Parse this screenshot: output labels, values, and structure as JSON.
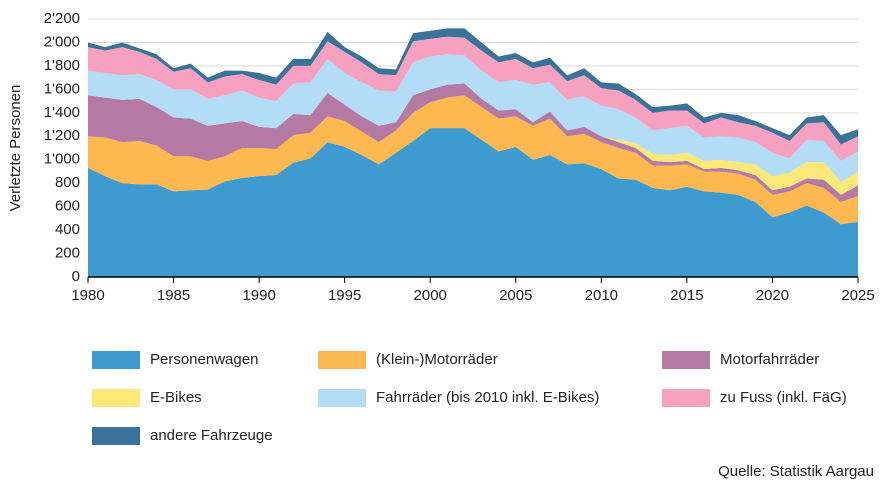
{
  "chart_data": {
    "type": "stacked_area",
    "y_label": "Verletzte Personen",
    "source": "Quelle: Statistik Aargau",
    "x": [
      1980,
      1981,
      1982,
      1983,
      1984,
      1985,
      1986,
      1987,
      1988,
      1989,
      1990,
      1991,
      1992,
      1993,
      1994,
      1995,
      1996,
      1997,
      1998,
      1999,
      2000,
      2001,
      2002,
      2003,
      2004,
      2005,
      2006,
      2007,
      2008,
      2009,
      2010,
      2011,
      2012,
      2013,
      2014,
      2015,
      2016,
      2017,
      2018,
      2019,
      2020,
      2021,
      2022,
      2023,
      2024,
      2025
    ],
    "xlim": [
      1980,
      2025
    ],
    "xticks": [
      1980,
      1985,
      1990,
      1995,
      2000,
      2005,
      2010,
      2015,
      2020,
      2025
    ],
    "ylim": [
      0,
      2200
    ],
    "yticks": [
      0,
      200,
      400,
      600,
      800,
      {
        "value": 1000,
        "label": "1'000"
      },
      {
        "value": 1200,
        "label": "1'200"
      },
      {
        "value": 1400,
        "label": "1'400"
      },
      {
        "value": 1600,
        "label": "1'600"
      },
      {
        "value": 1800,
        "label": "1'800"
      },
      {
        "value": 2000,
        "label": "2'000"
      },
      {
        "value": 2200,
        "label": "2'200"
      }
    ],
    "grid": true,
    "series": [
      {
        "name": "Personenwagen",
        "color": "#3d9bd0",
        "values": [
          930,
          860,
          800,
          790,
          790,
          730,
          740,
          745,
          815,
          845,
          860,
          870,
          975,
          1010,
          1150,
          1110,
          1040,
          960,
          1060,
          1160,
          1270,
          1270,
          1270,
          1170,
          1070,
          1110,
          1000,
          1040,
          960,
          970,
          920,
          840,
          830,
          760,
          740,
          770,
          730,
          720,
          700,
          640,
          510,
          550,
          610,
          550,
          450,
          470
        ]
      },
      {
        "name": "(Klein-)Motorräder",
        "color": "#fdb94f",
        "values": [
          270,
          330,
          350,
          370,
          330,
          300,
          290,
          245,
          215,
          255,
          240,
          220,
          235,
          220,
          220,
          220,
          200,
          190,
          190,
          240,
          220,
          260,
          280,
          280,
          280,
          260,
          290,
          310,
          240,
          250,
          230,
          260,
          230,
          190,
          210,
          190,
          170,
          180,
          180,
          190,
          190,
          180,
          190,
          210,
          190,
          220
        ]
      },
      {
        "name": "Motorfahrräder",
        "color": "#b57aa3",
        "values": [
          350,
          340,
          360,
          360,
          330,
          330,
          320,
          300,
          280,
          230,
          180,
          180,
          180,
          150,
          200,
          140,
          130,
          140,
          70,
          150,
          110,
          110,
          100,
          70,
          70,
          60,
          30,
          60,
          50,
          60,
          50,
          50,
          40,
          40,
          30,
          30,
          20,
          30,
          30,
          40,
          40,
          40,
          40,
          70,
          60,
          90
        ]
      },
      {
        "name": "E-Bikes",
        "color": "#fbe878",
        "values": [
          0,
          0,
          0,
          0,
          0,
          0,
          0,
          0,
          0,
          0,
          0,
          0,
          0,
          0,
          0,
          0,
          0,
          0,
          0,
          0,
          0,
          0,
          0,
          0,
          0,
          0,
          0,
          0,
          0,
          0,
          0,
          20,
          40,
          60,
          60,
          70,
          70,
          70,
          70,
          90,
          120,
          120,
          140,
          150,
          110,
          120
        ]
      },
      {
        "name": "Fahrräder (bis 2010 inkl. E-Bikes)",
        "color": "#b3dcf6",
        "values": [
          210,
          210,
          210,
          210,
          230,
          240,
          250,
          230,
          240,
          260,
          250,
          230,
          260,
          280,
          290,
          270,
          290,
          300,
          260,
          280,
          280,
          260,
          240,
          240,
          240,
          250,
          320,
          250,
          260,
          260,
          260,
          260,
          220,
          200,
          230,
          230,
          200,
          200,
          210,
          190,
          200,
          120,
          190,
          180,
          180,
          170
        ]
      },
      {
        "name": "zu Fuss (inkl. FäG)",
        "color": "#f7a1c0",
        "values": [
          200,
          190,
          240,
          190,
          180,
          150,
          180,
          140,
          160,
          140,
          150,
          140,
          150,
          140,
          150,
          180,
          170,
          140,
          140,
          180,
          150,
          150,
          150,
          170,
          170,
          180,
          140,
          150,
          160,
          180,
          150,
          160,
          150,
          150,
          150,
          130,
          120,
          160,
          130,
          140,
          170,
          150,
          140,
          160,
          140,
          130
        ]
      },
      {
        "name": "andere Fahrzeuge",
        "color": "#3a7399",
        "values": [
          40,
          30,
          40,
          30,
          40,
          30,
          40,
          40,
          50,
          30,
          60,
          60,
          60,
          60,
          80,
          40,
          50,
          50,
          50,
          70,
          70,
          70,
          80,
          70,
          50,
          50,
          50,
          60,
          50,
          60,
          50,
          60,
          50,
          50,
          40,
          60,
          50,
          40,
          60,
          40,
          40,
          50,
          50,
          60,
          80,
          60
        ]
      }
    ]
  }
}
